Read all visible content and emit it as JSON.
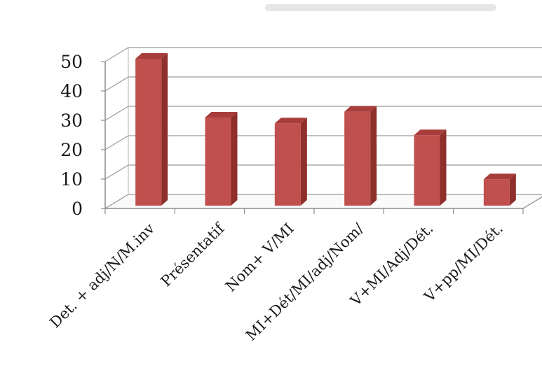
{
  "chart_data": {
    "type": "bar",
    "title": "",
    "xlabel": "",
    "ylabel": "",
    "categories": [
      "Det. + adj/N/M.inv",
      "Présentatif",
      "Nom+ V/MI",
      "MI+Dét/MI/adj/Nom/",
      "V+MI/Adj/Dét.",
      "V+pp/MI/Dét."
    ],
    "values": [
      50,
      30,
      28,
      32,
      24,
      9
    ],
    "ylim": [
      0,
      50
    ],
    "yticks": [
      "0",
      "10",
      "20",
      "30",
      "40",
      "50"
    ],
    "grid": true,
    "three_d": true,
    "legend": "none",
    "colors": {
      "bar_front": "#c0504d",
      "bar_side": "#8e2f2c",
      "bar_top": "#a83e3b",
      "gridline": "#9a9a9a",
      "wall": "#ffffff"
    }
  }
}
